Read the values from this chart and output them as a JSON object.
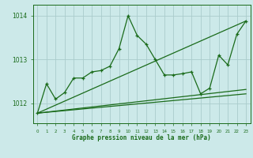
{
  "background_color": "#cce9e9",
  "grid_color": "#aacccc",
  "line_color": "#1a6b1a",
  "xlabel": "Graphe pression niveau de la mer (hPa)",
  "xlim": [
    -0.5,
    23.5
  ],
  "ylim": [
    1011.55,
    1014.25
  ],
  "yticks": [
    1012,
    1013,
    1014
  ],
  "xticks": [
    0,
    1,
    2,
    3,
    4,
    5,
    6,
    7,
    8,
    9,
    10,
    11,
    12,
    13,
    14,
    15,
    16,
    17,
    18,
    19,
    20,
    21,
    22,
    23
  ],
  "series1": [
    [
      0,
      1011.78
    ],
    [
      1,
      1012.45
    ],
    [
      2,
      1012.1
    ],
    [
      3,
      1012.25
    ],
    [
      4,
      1012.58
    ],
    [
      5,
      1012.58
    ],
    [
      6,
      1012.72
    ],
    [
      7,
      1012.75
    ],
    [
      8,
      1012.85
    ],
    [
      9,
      1013.25
    ],
    [
      10,
      1014.0
    ],
    [
      11,
      1013.55
    ],
    [
      12,
      1013.35
    ],
    [
      13,
      1013.0
    ],
    [
      14,
      1012.65
    ],
    [
      15,
      1012.65
    ],
    [
      16,
      1012.68
    ],
    [
      17,
      1012.72
    ],
    [
      18,
      1012.22
    ],
    [
      19,
      1012.35
    ],
    [
      20,
      1013.1
    ],
    [
      21,
      1012.88
    ],
    [
      22,
      1013.58
    ],
    [
      23,
      1013.88
    ]
  ],
  "series2": [
    [
      0,
      1011.78
    ],
    [
      23,
      1013.88
    ]
  ],
  "series3": [
    [
      0,
      1011.78
    ],
    [
      23,
      1012.32
    ]
  ],
  "series4": [
    [
      0,
      1011.78
    ],
    [
      23,
      1012.22
    ]
  ]
}
